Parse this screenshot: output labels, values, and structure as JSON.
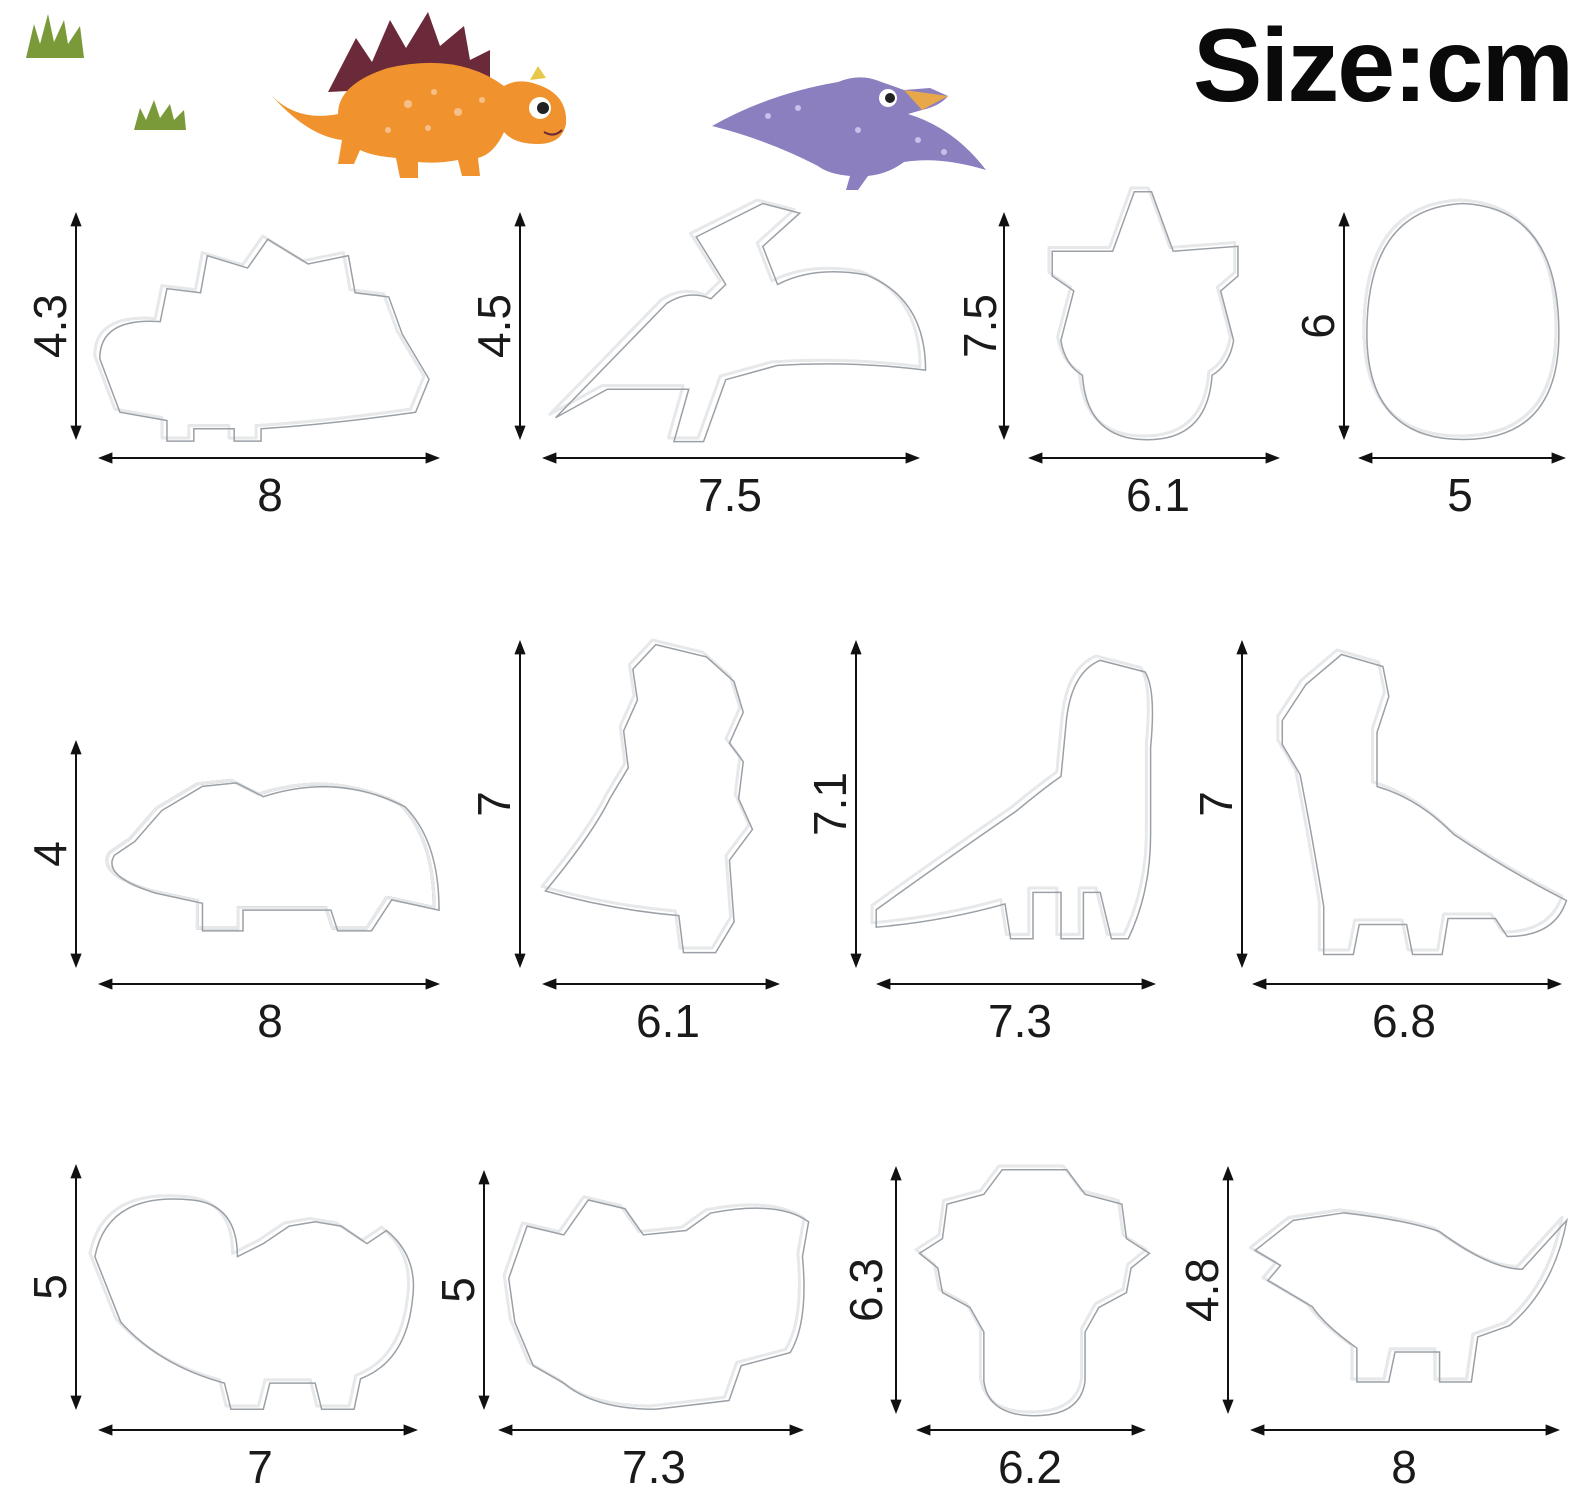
{
  "title": "Size:cm",
  "colors": {
    "stegosaurus": "#f0932e",
    "stegosaurus_plates": "#6b2a3a",
    "pterodactyl": "#8b7fc0",
    "beak": "#e8a84a",
    "grass": "#7a9a3a",
    "steel": "#9aa0a6",
    "arrow": "#111111"
  },
  "decorations": [
    "grass-icon",
    "grass-icon",
    "stegosaurus-illustration",
    "pterodactyl-illustration"
  ],
  "cutters": [
    {
      "shape": "stegosaurus",
      "width": "8",
      "height": "4.3"
    },
    {
      "shape": "pterodactyl",
      "width": "7.5",
      "height": "4.5"
    },
    {
      "shape": "dinosaur-foot",
      "width": "6.1",
      "height": "7.5"
    },
    {
      "shape": "egg",
      "width": "5",
      "height": "6"
    },
    {
      "shape": "triceratops",
      "width": "8",
      "height": "4"
    },
    {
      "shape": "t-rex",
      "width": "6.1",
      "height": "7"
    },
    {
      "shape": "brachiosaurus",
      "width": "7.3",
      "height": "7.1"
    },
    {
      "shape": "long-neck-dinosaur",
      "width": "6.8",
      "height": "7"
    },
    {
      "shape": "spiky-dinosaur",
      "width": "7",
      "height": "5"
    },
    {
      "shape": "ankylosaurus",
      "width": "7.3",
      "height": "5"
    },
    {
      "shape": "dinosaur-footprint",
      "width": "6.2",
      "height": "6.3"
    },
    {
      "shape": "raptor",
      "width": "8",
      "height": "4.8"
    }
  ]
}
